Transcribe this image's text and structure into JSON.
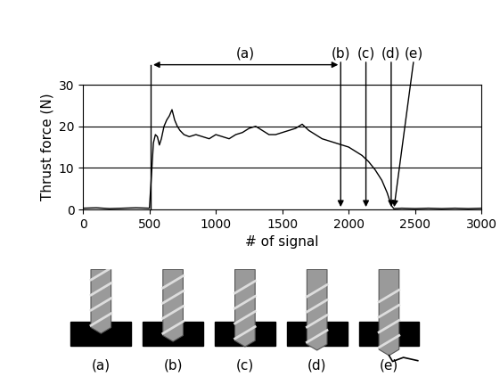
{
  "chart_data": {
    "type": "line",
    "x_label": "# of signal",
    "y_label": "Thrust force (N)",
    "color": "#000000",
    "x": [
      0,
      100,
      200,
      300,
      400,
      500,
      515,
      530,
      545,
      560,
      575,
      590,
      610,
      630,
      650,
      670,
      690,
      710,
      730,
      760,
      800,
      850,
      900,
      950,
      1000,
      1050,
      1100,
      1150,
      1200,
      1250,
      1300,
      1350,
      1400,
      1450,
      1500,
      1550,
      1600,
      1650,
      1700,
      1750,
      1800,
      1850,
      1900,
      1950,
      2000,
      2050,
      2100,
      2150,
      2200,
      2250,
      2290,
      2320,
      2340,
      2400,
      2500,
      2600,
      2700,
      2800,
      2900,
      3000
    ],
    "values": [
      0.3,
      0.4,
      0.2,
      0.3,
      0.4,
      0.3,
      8,
      16,
      18,
      17.5,
      15.5,
      17,
      20,
      21.5,
      22.5,
      24,
      21.5,
      20,
      19,
      18,
      17.5,
      18,
      17.5,
      17,
      18,
      17.5,
      17,
      18,
      18.5,
      19.5,
      20,
      19,
      18,
      18,
      18.5,
      19,
      19.5,
      20.5,
      19,
      18,
      17,
      16.5,
      16,
      15.5,
      15,
      14,
      13,
      11.5,
      9.5,
      7,
      4,
      1,
      0.2,
      0.3,
      0.2,
      0.3,
      0.2,
      0.3,
      0.2,
      0.3
    ],
    "xlim": [
      0,
      3000
    ],
    "ylim": [
      0,
      30
    ],
    "xticks": [
      0,
      500,
      1000,
      1500,
      2000,
      2500,
      3000
    ],
    "yticks": [
      0,
      10,
      20,
      30
    ],
    "grid": true,
    "annotations": [
      {
        "label": "(a)",
        "x_start": 510,
        "x_end": 1940
      },
      {
        "label": "(b)",
        "x": 1940
      },
      {
        "label": "(c)",
        "x": 2130
      },
      {
        "label": "(d)",
        "x": 2320
      },
      {
        "label": "(e)",
        "x": 2490,
        "x_end": 2340
      }
    ]
  },
  "illustrations": {
    "labels": [
      "(a)",
      "(b)",
      "(c)",
      "(d)",
      "(e)"
    ]
  }
}
